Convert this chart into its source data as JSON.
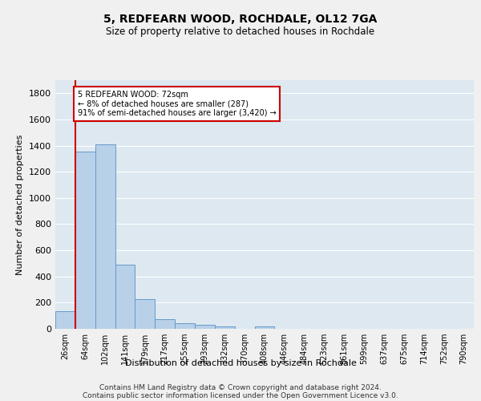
{
  "title": "5, REDFEARN WOOD, ROCHDALE, OL12 7GA",
  "subtitle": "Size of property relative to detached houses in Rochdale",
  "xlabel": "Distribution of detached houses by size in Rochdale",
  "ylabel": "Number of detached properties",
  "bar_labels": [
    "26sqm",
    "64sqm",
    "102sqm",
    "141sqm",
    "179sqm",
    "217sqm",
    "255sqm",
    "293sqm",
    "332sqm",
    "370sqm",
    "408sqm",
    "446sqm",
    "484sqm",
    "523sqm",
    "561sqm",
    "599sqm",
    "637sqm",
    "675sqm",
    "714sqm",
    "752sqm",
    "790sqm"
  ],
  "bar_values": [
    135,
    1355,
    1410,
    490,
    225,
    75,
    45,
    28,
    18,
    0,
    20,
    0,
    0,
    0,
    0,
    0,
    0,
    0,
    0,
    0,
    0
  ],
  "bar_color": "#b8d0e8",
  "bar_edge_color": "#6699cc",
  "property_line_color": "#cc0000",
  "annotation_text": "5 REDFEARN WOOD: 72sqm\n← 8% of detached houses are smaller (287)\n91% of semi-detached houses are larger (3,420) →",
  "annotation_box_color": "#ffffff",
  "annotation_box_edge_color": "#cc0000",
  "ylim": [
    0,
    1900
  ],
  "yticks": [
    0,
    200,
    400,
    600,
    800,
    1000,
    1200,
    1400,
    1600,
    1800
  ],
  "background_color": "#dde8f0",
  "grid_color": "#ffffff",
  "footer_line1": "Contains HM Land Registry data © Crown copyright and database right 2024.",
  "footer_line2": "Contains public sector information licensed under the Open Government Licence v3.0."
}
